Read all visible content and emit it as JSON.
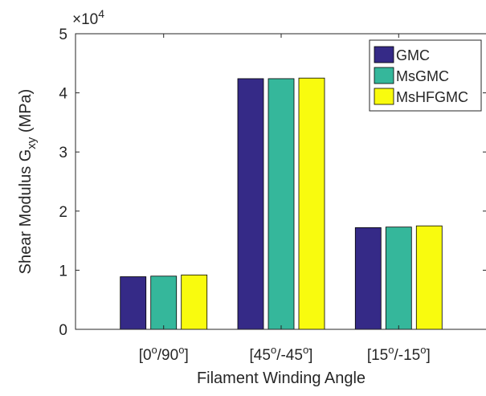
{
  "chart_data": {
    "type": "bar",
    "title": "",
    "xlabel": "Filament Winding Angle",
    "ylabel": {
      "main": "Shear Modulus G",
      "sub": "xy",
      "unit": " (MPa)"
    },
    "y_exponent": {
      "prefix": "×10",
      "power": "4"
    },
    "ylim": [
      0,
      5
    ],
    "yticks": [
      "0",
      "1",
      "2",
      "3",
      "4",
      "5"
    ],
    "categories": [
      {
        "pre": "[0",
        "a": "o",
        "mid": "/90",
        "b": "o",
        "post": "]"
      },
      {
        "pre": "[45",
        "a": "o",
        "mid": "/-45",
        "b": "o",
        "post": "]"
      },
      {
        "pre": "[15",
        "a": "o",
        "mid": "/-15",
        "b": "o",
        "post": "]"
      }
    ],
    "series": [
      {
        "name": "GMC",
        "color": "#352a87",
        "values": [
          0.89,
          4.24,
          1.72
        ]
      },
      {
        "name": "MsGMC",
        "color": "#35b79b",
        "values": [
          0.9,
          4.24,
          1.73
        ]
      },
      {
        "name": "MsHFGMC",
        "color": "#f9fb0e",
        "values": [
          0.92,
          4.25,
          1.75
        ]
      }
    ],
    "grid": false,
    "legend": "top-right"
  }
}
